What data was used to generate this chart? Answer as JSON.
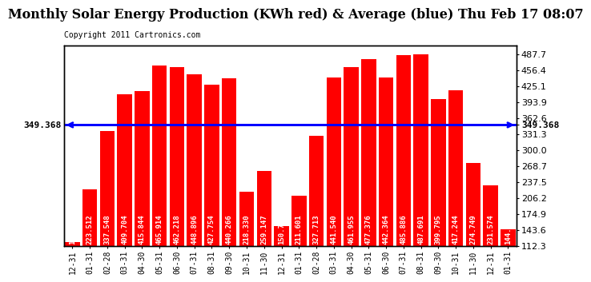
{
  "title": "Monthly Solar Energy Production (KWh red) & Average (blue) Thu Feb 17 08:07",
  "copyright": "Copyright 2011 Cartronics.com",
  "categories": [
    "12-31",
    "01-31",
    "02-28",
    "03-31",
    "04-30",
    "05-31",
    "06-30",
    "07-31",
    "08-31",
    "09-30",
    "10-31",
    "11-30",
    "12-31",
    "01-31",
    "02-28",
    "03-31",
    "04-30",
    "05-31",
    "06-30",
    "07-31",
    "08-31",
    "09-30",
    "10-31",
    "11-30",
    "12-31",
    "01-31"
  ],
  "values": [
    119.696,
    223.512,
    337.548,
    409.704,
    415.844,
    465.914,
    462.218,
    448.896,
    427.754,
    440.266,
    218.33,
    259.147,
    150.771,
    211.601,
    327.713,
    441.54,
    461.955,
    477.376,
    442.364,
    485.886,
    487.691,
    399.795,
    417.244,
    274.749,
    231.574,
    144.485
  ],
  "average": 349.368,
  "bar_color": "#ff0000",
  "avg_line_color": "#0000ff",
  "background_color": "#ffffff",
  "plot_bg_color": "#ffffff",
  "grid_color": "#aaaaaa",
  "title_fontsize": 11.5,
  "copyright_fontsize": 7,
  "bar_label_fontsize": 6.5,
  "tick_fontsize": 8,
  "ylabel_right_values": [
    112.3,
    143.6,
    174.9,
    206.2,
    237.5,
    268.7,
    300.0,
    331.3,
    362.6,
    393.9,
    425.1,
    456.4,
    487.7
  ],
  "ylim_min": 112.3,
  "ylim_max": 505.0,
  "avg_label": "349.368"
}
